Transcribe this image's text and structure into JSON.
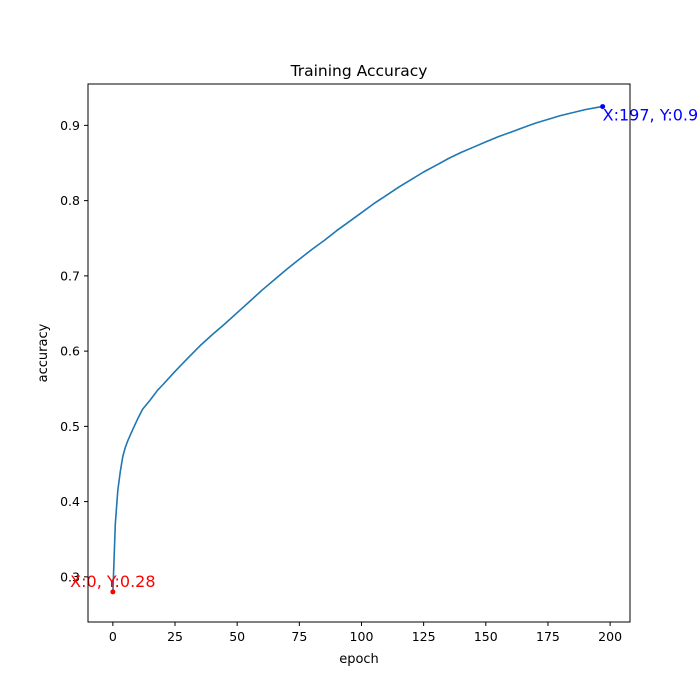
{
  "chart_data": {
    "type": "line",
    "title": "Training Accuracy",
    "xlabel": "epoch",
    "ylabel": "accuracy",
    "xlim": [
      -10,
      208
    ],
    "ylim": [
      0.24,
      0.955
    ],
    "xticks": [
      0,
      25,
      50,
      75,
      100,
      125,
      150,
      175,
      200
    ],
    "yticks": [
      0.3,
      0.4,
      0.5,
      0.6,
      0.7,
      0.8,
      0.9
    ],
    "grid": false,
    "legend": "none",
    "series": [
      {
        "color": "#1f77b4",
        "x": [
          0,
          1,
          2,
          3,
          4,
          5,
          6,
          8,
          10,
          12,
          15,
          18,
          20,
          25,
          30,
          35,
          40,
          45,
          50,
          55,
          60,
          65,
          70,
          75,
          80,
          85,
          90,
          95,
          100,
          105,
          110,
          115,
          120,
          125,
          130,
          135,
          140,
          145,
          150,
          155,
          160,
          165,
          170,
          175,
          180,
          185,
          190,
          195,
          197
        ],
        "y": [
          0.28,
          0.37,
          0.415,
          0.44,
          0.46,
          0.472,
          0.481,
          0.496,
          0.51,
          0.523,
          0.535,
          0.548,
          0.555,
          0.573,
          0.59,
          0.607,
          0.622,
          0.636,
          0.651,
          0.666,
          0.681,
          0.695,
          0.709,
          0.722,
          0.735,
          0.747,
          0.76,
          0.772,
          0.784,
          0.796,
          0.807,
          0.818,
          0.828,
          0.838,
          0.847,
          0.856,
          0.864,
          0.871,
          0.878,
          0.885,
          0.891,
          0.897,
          0.903,
          0.908,
          0.913,
          0.917,
          0.921,
          0.924,
          0.925
        ]
      }
    ],
    "annotations": [
      {
        "text": "X:0, Y:0.28",
        "x": 0,
        "y": 0.28,
        "color": "#ff0000"
      },
      {
        "text": "X:197, Y:0.9",
        "x": 197,
        "y": 0.925,
        "color": "#0000ff"
      }
    ]
  }
}
